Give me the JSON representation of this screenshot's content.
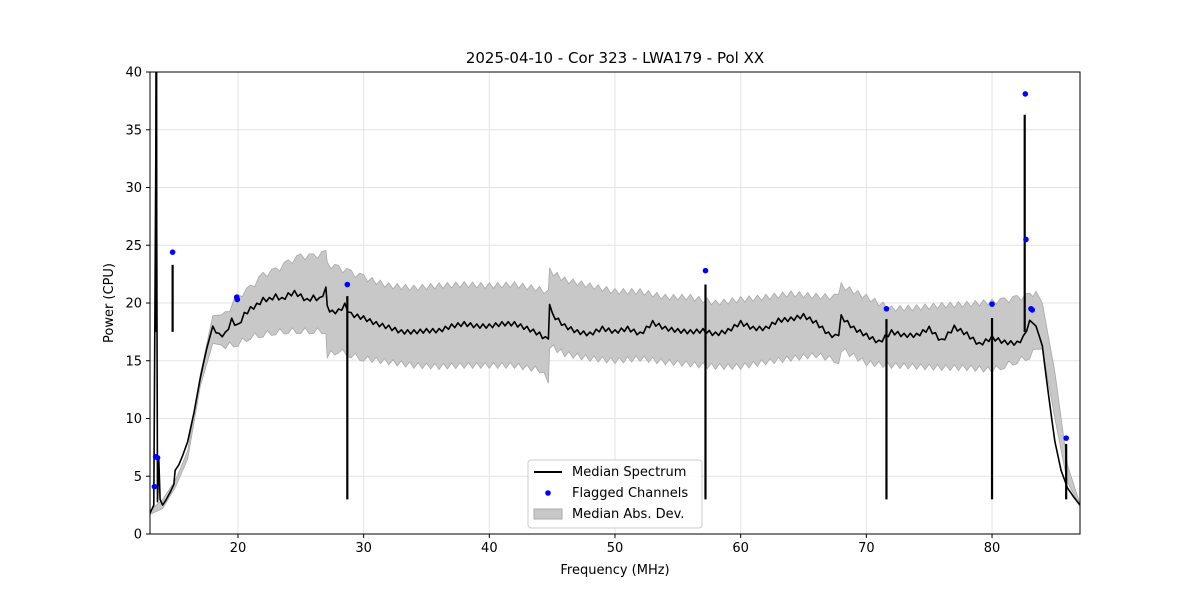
{
  "chart_data": {
    "type": "line",
    "title": "2025-04-10 - Cor 323 - LWA179 - Pol XX",
    "xlabel": "Frequency (MHz)",
    "ylabel": "Power (CPU)",
    "xlim": [
      13,
      87
    ],
    "ylim": [
      0,
      40
    ],
    "xticks": [
      20,
      30,
      40,
      50,
      60,
      70,
      80
    ],
    "yticks": [
      0,
      5,
      10,
      15,
      20,
      25,
      30,
      35,
      40
    ],
    "grid": true,
    "legend": {
      "position": "bottom-center",
      "entries": [
        "Median Spectrum",
        "Flagged Channels",
        "Median Abs. Dev."
      ]
    },
    "series": [
      {
        "name": "Median Spectrum",
        "style": "line",
        "color": "#000000",
        "x": [
          13.0,
          13.3,
          13.5,
          13.6,
          13.7,
          13.8,
          14.0,
          14.3,
          14.6,
          14.9,
          15.0,
          15.3,
          15.6,
          16.0,
          16.5,
          17.0,
          17.5,
          18.0,
          18.5,
          19.0,
          19.5,
          20.0,
          20.5,
          21.0,
          21.5,
          22.0,
          22.5,
          23.0,
          23.5,
          24.0,
          24.5,
          25.0,
          25.5,
          26.0,
          26.5,
          27.0,
          27.1,
          27.5,
          28.0,
          28.5,
          29.0,
          30.0,
          31.0,
          32.0,
          33.0,
          34.0,
          35.0,
          36.0,
          37.0,
          38.0,
          39.0,
          40.0,
          41.0,
          42.0,
          43.0,
          44.0,
          44.7,
          44.8,
          45.0,
          46.0,
          47.0,
          48.0,
          49.0,
          50.0,
          51.0,
          52.0,
          53.0,
          54.0,
          55.0,
          56.0,
          57.0,
          58.0,
          59.0,
          60.0,
          61.0,
          62.0,
          63.0,
          64.0,
          65.0,
          66.0,
          67.0,
          67.8,
          68.0,
          69.0,
          70.0,
          71.0,
          72.0,
          73.0,
          74.0,
          75.0,
          76.0,
          77.0,
          78.0,
          79.0,
          80.0,
          81.0,
          82.0,
          82.5,
          83.0,
          83.5,
          84.0,
          84.5,
          85.0,
          85.5,
          86.0,
          86.5,
          87.0
        ],
        "y": [
          1.8,
          2.5,
          40,
          2.8,
          6.5,
          3.0,
          2.5,
          3.0,
          3.6,
          4.3,
          5.5,
          6.0,
          6.8,
          8.0,
          10.5,
          13.5,
          16.0,
          18.0,
          17.2,
          17.3,
          18.5,
          18.0,
          19.0,
          19.5,
          19.8,
          20.3,
          20.3,
          20.6,
          20.3,
          20.7,
          20.9,
          20.6,
          20.2,
          20.5,
          20.3,
          21.2,
          19.6,
          19.2,
          19.3,
          19.8,
          19.0,
          18.7,
          18.2,
          17.9,
          17.5,
          17.5,
          17.6,
          17.6,
          18.0,
          18.2,
          18.0,
          18.0,
          18.2,
          18.2,
          17.8,
          17.3,
          16.7,
          19.7,
          19.0,
          18.0,
          17.5,
          17.3,
          17.8,
          17.5,
          17.8,
          17.3,
          18.3,
          17.8,
          17.6,
          17.5,
          17.6,
          17.3,
          17.6,
          18.3,
          17.8,
          17.8,
          18.5,
          18.6,
          18.9,
          18.3,
          17.3,
          17.0,
          18.8,
          17.8,
          17.2,
          16.6,
          17.5,
          17.2,
          17.2,
          17.8,
          16.7,
          17.9,
          17.3,
          16.4,
          17.0,
          16.6,
          16.5,
          17.0,
          18.5,
          18.0,
          16.3,
          12.0,
          8.0,
          5.5,
          4.0,
          3.2,
          2.5
        ]
      },
      {
        "name": "Median Abs. Dev.",
        "style": "band",
        "color": "#c8c8c8",
        "x": [
          13.0,
          14.0,
          15.0,
          16.0,
          17.0,
          18.0,
          19.0,
          20.0,
          21.0,
          22.0,
          23.0,
          24.0,
          25.0,
          26.0,
          27.0,
          27.1,
          28.0,
          29.0,
          30.0,
          32.0,
          34.0,
          36.0,
          38.0,
          40.0,
          42.0,
          44.0,
          44.7,
          44.8,
          46.0,
          48.0,
          50.0,
          52.0,
          54.0,
          56.0,
          58.0,
          60.0,
          62.0,
          64.0,
          66.0,
          67.8,
          68.0,
          70.0,
          72.0,
          74.0,
          76.0,
          78.0,
          80.0,
          81.0,
          82.0,
          83.0,
          83.5,
          84.0,
          85.0,
          86.0,
          87.0
        ],
        "upper": [
          2.0,
          3.0,
          4.6,
          7.2,
          13.8,
          18.9,
          19.0,
          20.5,
          21.3,
          22.4,
          22.8,
          23.5,
          24.0,
          24.0,
          24.3,
          23.3,
          23.0,
          22.6,
          22.2,
          21.5,
          21.3,
          21.5,
          21.6,
          21.5,
          21.6,
          21.2,
          20.9,
          22.8,
          22.0,
          21.5,
          21.0,
          21.0,
          20.5,
          20.5,
          20.0,
          20.3,
          20.5,
          20.8,
          20.6,
          20.5,
          21.5,
          20.5,
          19.5,
          19.6,
          19.8,
          19.9,
          20.1,
          20.2,
          20.4,
          20.6,
          21.0,
          20.0,
          14.0,
          6.0,
          2.6
        ],
        "lower": [
          1.7,
          2.2,
          4.0,
          6.5,
          12.8,
          16.5,
          16.3,
          16.5,
          17.1,
          17.3,
          17.5,
          17.6,
          17.6,
          17.6,
          17.6,
          15.5,
          15.9,
          15.5,
          15.2,
          14.9,
          14.6,
          14.5,
          14.6,
          14.6,
          14.6,
          14.2,
          13.3,
          16.3,
          15.6,
          15.2,
          15.0,
          15.2,
          14.9,
          14.7,
          14.5,
          14.5,
          14.9,
          15.2,
          15.5,
          15.0,
          16.0,
          14.8,
          14.6,
          14.5,
          14.4,
          14.4,
          14.2,
          14.6,
          15.0,
          15.4,
          16.0,
          16.0,
          10.0,
          4.5,
          2.4
        ]
      },
      {
        "name": "Flagged Channels",
        "style": "scatter",
        "color": "#0000ff",
        "x": [
          13.35,
          13.45,
          13.6,
          14.8,
          19.9,
          19.95,
          28.7,
          57.2,
          71.6,
          80.0,
          82.65,
          82.7,
          83.1,
          83.2,
          85.9
        ],
        "y": [
          4.1,
          6.7,
          6.6,
          24.4,
          20.5,
          20.3,
          21.6,
          22.8,
          19.5,
          19.9,
          38.1,
          25.5,
          19.5,
          19.4,
          8.3
        ]
      }
    ],
    "spikes": [
      {
        "x": 13.5,
        "y": 40
      },
      {
        "x": 14.8,
        "y": 23.3
      },
      {
        "x": 28.7,
        "y": 20.6
      },
      {
        "x": 57.2,
        "y": 21.6
      },
      {
        "x": 71.6,
        "y": 18.6
      },
      {
        "x": 80.0,
        "y": 18.7
      },
      {
        "x": 82.6,
        "y": 36.3
      },
      {
        "x": 85.9,
        "y": 7.8
      }
    ]
  }
}
